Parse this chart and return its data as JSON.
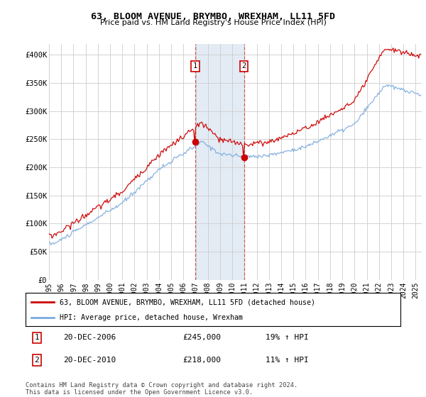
{
  "title": "63, BLOOM AVENUE, BRYMBO, WREXHAM, LL11 5FD",
  "subtitle": "Price paid vs. HM Land Registry's House Price Index (HPI)",
  "legend_line1": "63, BLOOM AVENUE, BRYMBO, WREXHAM, LL11 5FD (detached house)",
  "legend_line2": "HPI: Average price, detached house, Wrexham",
  "sale1_label": "1",
  "sale1_date": "20-DEC-2006",
  "sale1_price": "£245,000",
  "sale1_hpi": "19% ↑ HPI",
  "sale2_label": "2",
  "sale2_date": "20-DEC-2010",
  "sale2_price": "£218,000",
  "sale2_hpi": "11% ↑ HPI",
  "footnote": "Contains HM Land Registry data © Crown copyright and database right 2024.\nThis data is licensed under the Open Government Licence v3.0.",
  "line_color_red": "#cc0000",
  "line_color_blue": "#7aaadd",
  "vline_color": "#cc4444",
  "shade_color": "#ccdded",
  "background_color": "#ffffff",
  "grid_color": "#cccccc",
  "ylim": [
    0,
    420000
  ],
  "yticks": [
    0,
    50000,
    100000,
    150000,
    200000,
    250000,
    300000,
    350000,
    400000
  ],
  "ytick_labels": [
    "£0",
    "£50K",
    "£100K",
    "£150K",
    "£200K",
    "£250K",
    "£300K",
    "£350K",
    "£400K"
  ],
  "sale1_year": 2006.958,
  "sale2_year": 2010.958,
  "sale1_value": 245000,
  "sale2_value": 218000,
  "xmin": 1995,
  "xmax": 2025.5
}
